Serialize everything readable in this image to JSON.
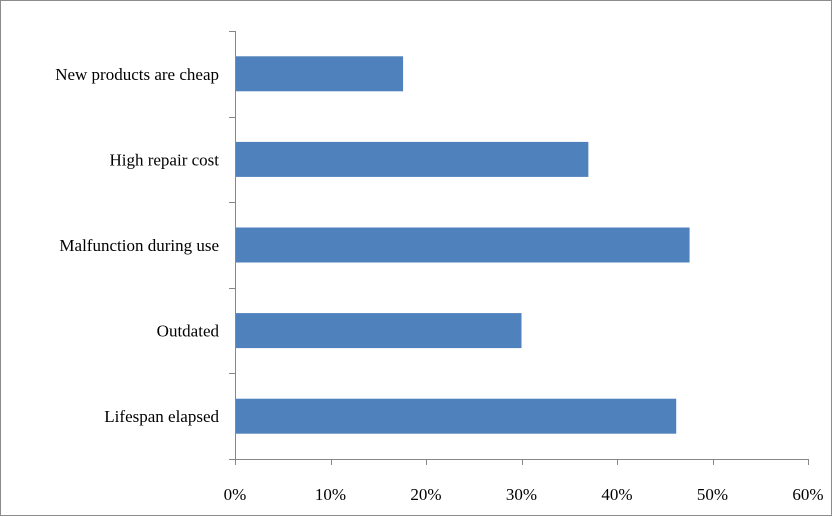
{
  "chart_data": {
    "type": "bar",
    "orientation": "horizontal",
    "categories": [
      "New products are cheap",
      "High repair cost",
      "Malfunction during use",
      "Outdated",
      "Lifespan elapsed"
    ],
    "values": [
      0.176,
      0.37,
      0.476,
      0.3,
      0.462
    ],
    "value_format": "percent",
    "xlim": [
      0,
      0.6
    ],
    "x_ticks": [
      0,
      0.1,
      0.2,
      0.3,
      0.4,
      0.5,
      0.6
    ],
    "x_tick_labels": [
      "0%",
      "10%",
      "20%",
      "30%",
      "40%",
      "50%",
      "60%"
    ],
    "title": "",
    "xlabel": "",
    "ylabel": "",
    "grid": false,
    "legend": "none",
    "bar_color": "#4f81bd"
  }
}
